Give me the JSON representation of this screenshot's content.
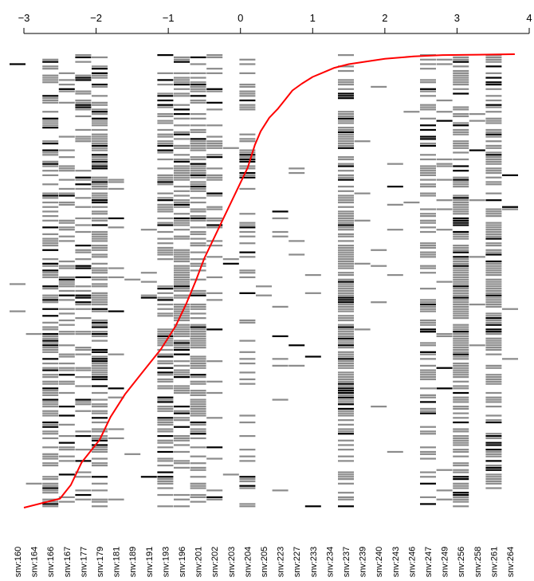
{
  "chart_data": {
    "type": "heatmap",
    "x_axis": {
      "position": "top",
      "range": [
        -3,
        4
      ],
      "ticks": [
        -3,
        -2,
        -1,
        0,
        1,
        2,
        3,
        4
      ],
      "tick_labels": [
        "−3",
        "−2",
        "−1",
        "0",
        "1",
        "2",
        "3",
        "4"
      ]
    },
    "columns": [
      "snv:160",
      "snv:164",
      "snv:166",
      "snv:167",
      "snv:177",
      "snv:179",
      "snv:181",
      "snv:189",
      "snv:191",
      "snv:193",
      "snv:196",
      "snv:201",
      "snv:202",
      "snv:203",
      "snv:204",
      "snv:205",
      "snv:223",
      "snv:227",
      "snv:233",
      "snv:234",
      "snv:237",
      "snv:239",
      "snv:240",
      "snv:243",
      "snv:246",
      "snv:247",
      "snv:249",
      "snv:256",
      "snv:258",
      "snv:261",
      "snv:264"
    ],
    "column_density": [
      0.01,
      0.01,
      0.75,
      0.35,
      0.45,
      0.7,
      0.08,
      0.03,
      0.03,
      0.55,
      0.75,
      0.7,
      0.4,
      0.02,
      0.35,
      0.02,
      0.04,
      0.03,
      0.02,
      0.02,
      0.85,
      0.06,
      0.05,
      0.03,
      0.03,
      0.55,
      0.12,
      0.85,
      0.06,
      0.8,
      0.02
    ],
    "column_concentration": [
      0.5,
      0.1,
      0.75,
      0.5,
      0.3,
      0.5,
      0.6,
      0.5,
      0.5,
      0.5,
      0.45,
      0.25,
      0.2,
      0.5,
      0.2,
      0.1,
      0.25,
      0.1,
      0.05,
      0.1,
      0.5,
      0.2,
      0.2,
      0.4,
      0.6,
      0.5,
      0.4,
      0.5,
      0.15,
      0.5,
      0.6
    ],
    "cell_states": [
      "absent",
      "present",
      "strong"
    ],
    "colors": {
      "present": "#8c8c8c",
      "strong": "#000000",
      "curve": "#ff0000"
    },
    "n_rows": 200,
    "series": [],
    "curve": {
      "x": [
        -3.0,
        -2.5,
        -2.35,
        -2.2,
        -1.95,
        -1.8,
        -1.6,
        -1.35,
        -1.1,
        -0.9,
        -0.75,
        -0.62,
        -0.5,
        -0.35,
        -0.2,
        -0.05,
        0.1,
        0.2,
        0.28,
        0.4,
        0.52,
        0.62,
        0.72,
        0.85,
        1.0,
        1.15,
        1.3,
        1.5,
        1.75,
        2.0,
        2.4,
        2.8,
        3.3,
        3.8
      ],
      "y": [
        0,
        0.02,
        0.05,
        0.1,
        0.15,
        0.2,
        0.25,
        0.3,
        0.35,
        0.4,
        0.45,
        0.5,
        0.55,
        0.6,
        0.65,
        0.7,
        0.75,
        0.8,
        0.83,
        0.86,
        0.88,
        0.9,
        0.92,
        0.935,
        0.95,
        0.96,
        0.97,
        0.978,
        0.984,
        0.99,
        0.995,
        0.998,
        0.999,
        1.0
      ]
    }
  }
}
